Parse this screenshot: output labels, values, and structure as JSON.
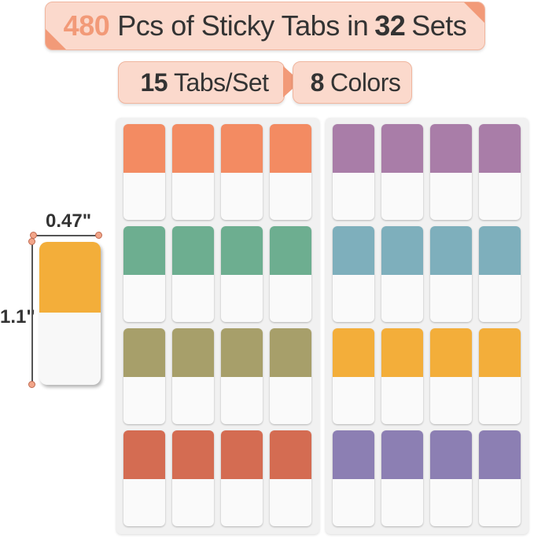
{
  "header": {
    "count": "480",
    "text1": "Pcs of Sticky Tabs in",
    "sets": "32",
    "text2": "Sets"
  },
  "sub": {
    "tabs_num": "15",
    "tabs_text": "Tabs/Set",
    "colors_num": "8",
    "colors_text": "Colors"
  },
  "sample": {
    "width": "0.47\"",
    "height": "1.1\"",
    "color": "#F3AE3A"
  },
  "sheets": [
    {
      "rows": [
        "#F38B62",
        "#6DAE90",
        "#A79F6A",
        "#D46C52"
      ]
    },
    {
      "rows": [
        "#A97DA8",
        "#7EAFBC",
        "#F3AE3A",
        "#8C7FB3"
      ]
    }
  ]
}
